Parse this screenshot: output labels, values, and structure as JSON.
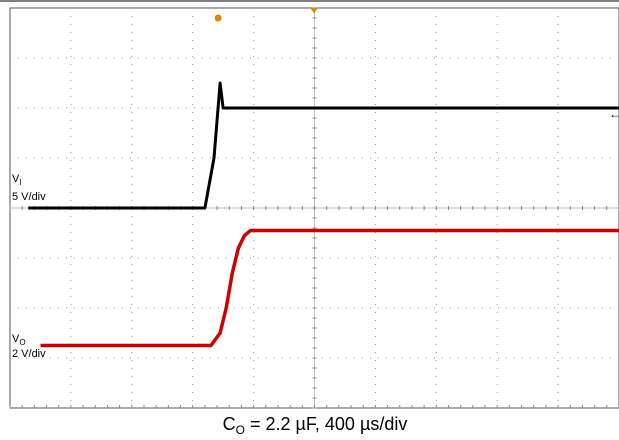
{
  "chart_data": {
    "type": "line",
    "title": "",
    "caption": {
      "main": "C",
      "sub": "O",
      "rest": " = 2.2 µF, 400 µs/div"
    },
    "xlim": [
      0,
      10
    ],
    "ylim": [
      -4,
      4
    ],
    "grid": true,
    "series": [
      {
        "name_main": "V",
        "name_sub": "I",
        "scale": "5 V/div",
        "color": "#000000",
        "x": [
          0.3,
          3.2,
          3.35,
          3.45,
          3.5,
          10.0
        ],
        "y": [
          0.0,
          0.0,
          1.0,
          2.5,
          2.0,
          2.0
        ]
      },
      {
        "name_main": "V",
        "name_sub": "O",
        "scale": "2 V/div",
        "color": "#cc0000",
        "x": [
          0.5,
          3.3,
          3.45,
          3.55,
          3.65,
          3.75,
          3.85,
          3.95,
          10.0
        ],
        "y": [
          -2.75,
          -2.75,
          -2.5,
          -2.0,
          -1.3,
          -0.8,
          -0.55,
          -0.45,
          -0.45
        ]
      }
    ],
    "markers": {
      "trigger_color": "#e08a00",
      "ground_arrow": "←"
    }
  }
}
